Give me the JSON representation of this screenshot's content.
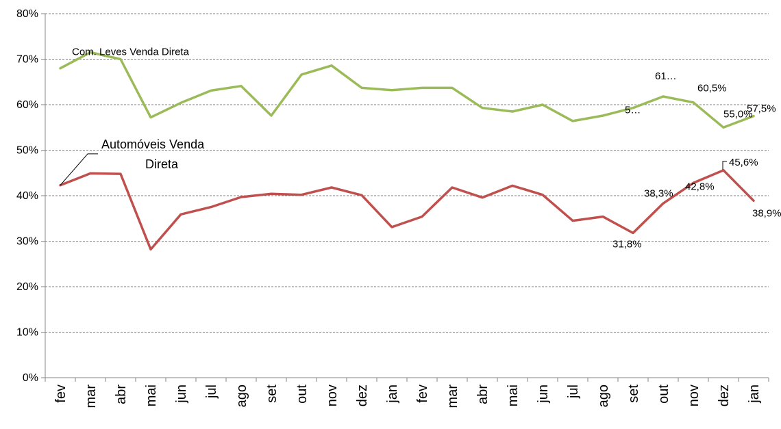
{
  "chart_data": {
    "type": "line",
    "title": "",
    "xlabel": "",
    "ylabel": "",
    "ylim": [
      0,
      80
    ],
    "y_ticks": [
      "0%",
      "10%",
      "20%",
      "30%",
      "40%",
      "50%",
      "60%",
      "70%",
      "80%"
    ],
    "grid": true,
    "categories": [
      "fev",
      "mar",
      "abr",
      "mai",
      "jun",
      "jul",
      "ago",
      "set",
      "out",
      "nov",
      "dez",
      "jan",
      "fev",
      "mar",
      "abr",
      "mai",
      "jun",
      "jul",
      "ago",
      "set",
      "out",
      "nov",
      "dez",
      "jan"
    ],
    "series": [
      {
        "name": "Com. Leves Venda Direta",
        "color": "#9bbb59",
        "values": [
          68.0,
          71.5,
          70.0,
          57.2,
          60.4,
          63.1,
          64.1,
          57.6,
          66.6,
          68.6,
          63.7,
          63.2,
          63.7,
          63.7,
          59.3,
          58.5,
          60.0,
          56.4,
          57.6,
          59.3,
          61.8,
          60.5,
          55.0,
          57.5
        ],
        "data_labels": [
          {
            "index": 19,
            "text": "5…"
          },
          {
            "index": 20,
            "text": "61…"
          },
          {
            "index": 21,
            "text": "60,5%"
          },
          {
            "index": 22,
            "text": "55,0%"
          },
          {
            "index": 23,
            "text": "57,5%"
          }
        ]
      },
      {
        "name": "Automóveis Venda Direta",
        "color": "#c0504d",
        "values": [
          42.3,
          44.9,
          44.8,
          28.2,
          35.9,
          37.5,
          39.7,
          40.4,
          40.2,
          41.8,
          40.1,
          33.1,
          35.4,
          41.8,
          39.6,
          42.2,
          40.2,
          34.5,
          35.4,
          31.8,
          38.3,
          42.8,
          45.6,
          38.9
        ],
        "data_labels": [
          {
            "index": 19,
            "text": "31,8%"
          },
          {
            "index": 20,
            "text": "38,3%"
          },
          {
            "index": 21,
            "text": "42,8%"
          },
          {
            "index": 22,
            "text": "45,6%"
          },
          {
            "index": 23,
            "text": "38,9%"
          }
        ]
      }
    ],
    "series_labels": {
      "green": "Com. Leves Venda Direta",
      "red_line1": "Automóveis Venda",
      "red_line2": "Direta"
    }
  }
}
